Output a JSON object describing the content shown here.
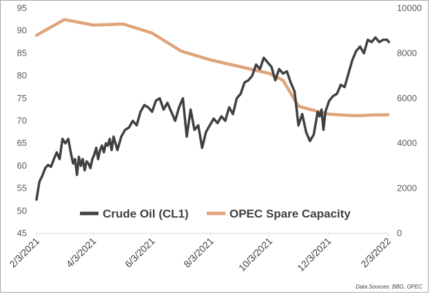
{
  "chart_data": {
    "type": "line",
    "title": "",
    "x_tick_labels": [
      "2/3/2021",
      "4/3/2021",
      "6/3/2021",
      "8/3/2021",
      "10/3/2021",
      "12/3/2021",
      "2/3/2022"
    ],
    "y_left": {
      "ticks": [
        "45",
        "50",
        "55",
        "60",
        "65",
        "70",
        "75",
        "80",
        "85",
        "90",
        "95"
      ],
      "ylim": [
        45,
        95
      ]
    },
    "y_right": {
      "ticks": [
        "0",
        "2000",
        "4000",
        "6000",
        "8000",
        "10000"
      ],
      "ylim": [
        0,
        10000
      ]
    },
    "series": [
      {
        "name": "Crude Oil (CL1)",
        "axis": "left",
        "color": "#404040",
        "x_days": [
          0,
          3,
          6,
          9,
          12,
          15,
          18,
          21,
          24,
          27,
          30,
          33,
          36,
          38,
          40,
          42,
          44,
          46,
          48,
          50,
          52,
          54,
          56,
          58,
          60,
          62,
          64,
          66,
          68,
          70,
          72,
          74,
          76,
          78,
          80,
          84,
          88,
          92,
          96,
          100,
          104,
          108,
          112,
          116,
          120,
          124,
          128,
          132,
          136,
          140,
          144,
          148,
          152,
          156,
          160,
          164,
          168,
          172,
          176,
          180,
          184,
          188,
          192,
          196,
          200,
          204,
          208,
          212,
          216,
          220,
          224,
          228,
          232,
          236,
          240,
          244,
          248,
          252,
          256,
          260,
          264,
          268,
          272,
          276,
          280,
          284,
          288,
          292,
          294,
          296,
          298,
          300,
          304,
          308,
          312,
          316,
          320,
          324,
          328,
          332,
          336,
          340,
          344,
          348,
          352,
          356,
          360,
          364,
          366
        ],
        "values": [
          52.5,
          56.5,
          57.8,
          59.5,
          60.2,
          59.8,
          61.5,
          63.0,
          61.5,
          66.0,
          65.0,
          66.0,
          62.5,
          60.5,
          61.5,
          58.0,
          62.0,
          60.0,
          61.5,
          59.0,
          61.0,
          60.5,
          59.5,
          61.5,
          62.5,
          64.0,
          61.5,
          63.5,
          64.5,
          63.0,
          65.0,
          64.5,
          66.0,
          63.5,
          66.5,
          63.5,
          66.5,
          68.0,
          68.5,
          70.0,
          69.0,
          72.0,
          73.5,
          73.0,
          72.0,
          74.5,
          75.0,
          72.5,
          74.0,
          72.0,
          70.0,
          73.0,
          75.0,
          66.5,
          72.5,
          68.0,
          69.0,
          64.0,
          67.5,
          69.0,
          70.5,
          69.5,
          71.0,
          70.0,
          73.0,
          71.5,
          75.0,
          76.0,
          78.5,
          79.0,
          80.0,
          82.5,
          81.5,
          84.0,
          83.0,
          82.0,
          79.0,
          81.5,
          80.5,
          81.0,
          78.5,
          76.5,
          69.0,
          71.5,
          67.5,
          65.5,
          67.0,
          72.0,
          71.0,
          72.5,
          68.0,
          72.0,
          74.5,
          75.5,
          76.0,
          78.0,
          77.5,
          80.5,
          83.5,
          85.5,
          86.5,
          85.0,
          88.0,
          87.5,
          88.5,
          87.5,
          88.0,
          88.0,
          87.5
        ]
      },
      {
        "name": "OPEC Spare Capacity",
        "axis": "right",
        "color": "#e0a47a",
        "x_days": [
          0,
          29,
          59,
          90,
          120,
          150,
          181,
          212,
          242,
          256,
          272,
          289,
          303,
          320,
          334,
          350,
          365
        ],
        "values": [
          8800,
          9500,
          9250,
          9300,
          8900,
          8100,
          7700,
          7400,
          7100,
          6800,
          5650,
          5450,
          5300,
          5250,
          5230,
          5260,
          5270
        ]
      }
    ],
    "legend": {
      "placement": "bottom-center"
    },
    "grid": false,
    "source": "Data Sources: BBG, OPEC"
  }
}
